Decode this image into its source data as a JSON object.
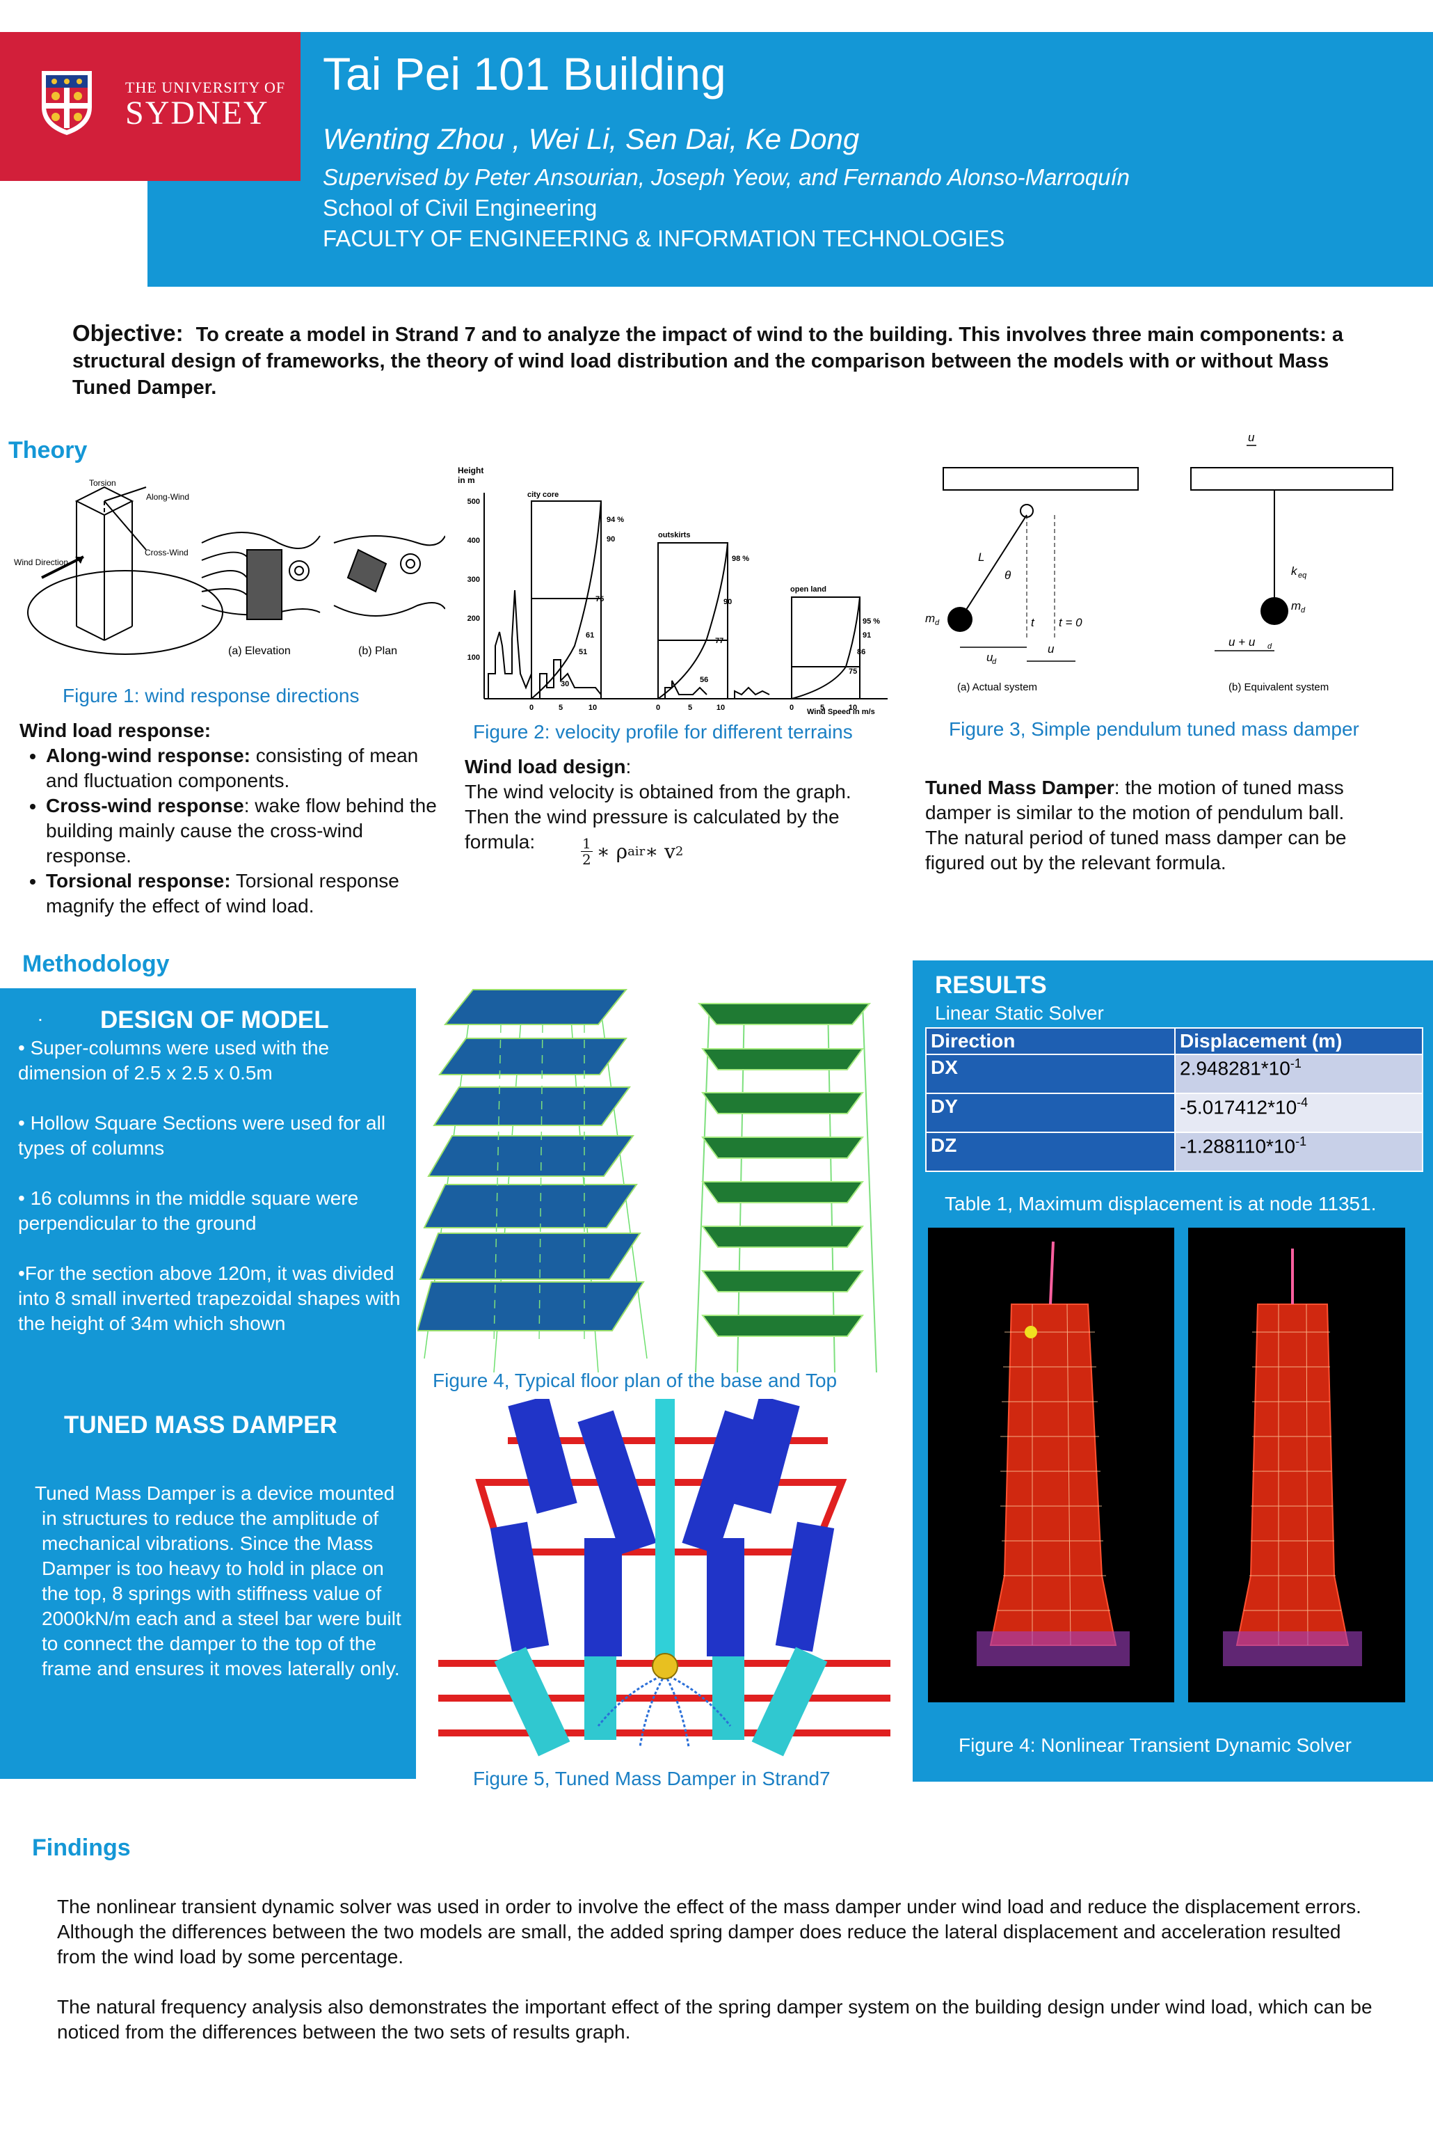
{
  "header": {
    "university_small": "THE UNIVERSITY OF",
    "university_big": "SYDNEY",
    "title": "Tai Pei 101 Building",
    "authors": "Wenting Zhou , Wei Li,  Sen Dai, Ke Dong",
    "supervisors": "Supervised by Peter Ansourian, Joseph Yeow, and Fernando Alonso-Marroquín",
    "school": "School of Civil Engineering",
    "faculty": "FACULTY OF ENGINEERING & INFORMATION TECHNOLOGIES"
  },
  "objective": {
    "label": "Objective:",
    "text": "To create a model in Strand 7 and to analyze the impact of wind to the building. This involves three main components: a structural design of frameworks, the theory of wind load distribution and the comparison between the models with or without Mass Tuned Damper."
  },
  "theory": {
    "heading": "Theory",
    "fig1": {
      "caption": "Figure 1: wind response directions",
      "labels": {
        "torsion": "Torsion",
        "along_wind": "Along-Wind",
        "cross_wind": "Cross-Wind",
        "wind_direction": "Wind Direction",
        "elevation": "(a) Elevation",
        "plan": "(b) Plan"
      }
    },
    "fig2": {
      "caption": "Figure 2: velocity profile for different terrains",
      "labels": {
        "height": "Height",
        "in_m": "in m",
        "city_core": "city core",
        "outskirts": "outskirts",
        "open_land": "open land",
        "wind_speed": "Wind Speed in m/s",
        "y_ticks": [
          "500",
          "400",
          "300",
          "200",
          "100"
        ],
        "x_ticks": [
          "0",
          "5",
          "10"
        ],
        "city_pcts": [
          "94 %",
          "90",
          "75",
          "61",
          "51",
          "30"
        ],
        "outskirts_pcts": [
          "98 %",
          "90",
          "77",
          "56"
        ],
        "open_pcts": [
          "95 %",
          "91",
          "86",
          "75"
        ]
      }
    },
    "fig3": {
      "caption": "Figure 3, Simple pendulum tuned mass damper",
      "labels": {
        "actual": "(a) Actual system",
        "equivalent": "(b) Equivalent system",
        "L": "L",
        "theta": "θ",
        "md": "m",
        "md_sub": "d",
        "keq": "k",
        "keq_sub": "eq",
        "t": "t",
        "t0": "t = 0",
        "ud": "u",
        "ud_sub": "d",
        "u": "u",
        "u_plus": "u + u",
        "u_top": "u"
      }
    },
    "wind_load_response": {
      "heading": "Wind load response:",
      "items": [
        {
          "bold": "Along-wind response:",
          "text": " consisting of mean and fluctuation components."
        },
        {
          "bold": "Cross-wind response",
          "text": ": wake flow behind the building mainly cause the cross-wind response."
        },
        {
          "bold": "Torsional response:",
          "text": " Torsional response magnify the effect of wind load."
        }
      ]
    },
    "wind_load_design": {
      "heading": "Wind load design",
      "colon": ":",
      "text": "The wind velocity is obtained from the graph. Then the wind pressure is calculated by the formula:",
      "formula_num": "1",
      "formula_den": "2",
      "formula_rest": "∗ ρ",
      "formula_sub": "air",
      "formula_end": " ∗ v",
      "formula_sup": "2"
    },
    "tmd_text": {
      "bold": "Tuned Mass Damper",
      "text": ": the motion of tuned mass damper is similar to the motion of pendulum ball. The natural period of tuned mass damper can be figured out by the relevant formula."
    }
  },
  "methodology": {
    "heading": "Methodology",
    "dot": ".",
    "design_heading": "DESIGN OF MODEL",
    "design_items": [
      "• Super-columns were used with the dimension of 2.5 x 2.5 x 0.5m",
      "• Hollow Square Sections were used for all types of columns",
      "• 16 columns in the middle square were perpendicular to the ground",
      "•For the section above  120m, it was divided into 8 small inverted trapezoidal shapes with the height of 34m which shown"
    ],
    "tmd_heading": "TUNED MASS DAMPER",
    "tmd_text": "Tuned Mass Damper is a device mounted in structures to reduce the amplitude of mechanical vibrations. Since the Mass Damper is too heavy to hold in place on the top, 8 springs with stiffness value of 2000kN/m each and a steel bar were built to connect the damper to the top of the frame and ensures it moves laterally only.",
    "fig4_caption": "Figure 4, Typical floor plan of the base and Top",
    "fig5_caption": "Figure 5, Tuned Mass Damper in Strand7"
  },
  "results": {
    "heading": "RESULTS",
    "subheading": "Linear Static Solver",
    "table": {
      "headers": [
        "Direction",
        "Displacement (m)"
      ],
      "rows": [
        {
          "dir": "DX",
          "base": "2.948281*10",
          "exp": "-1"
        },
        {
          "dir": "DY",
          "base": "-5.017412*10",
          "exp": "-4"
        },
        {
          "dir": "DZ",
          "base": "-1.288110*10",
          "exp": "-1"
        }
      ]
    },
    "table_caption": "Table 1, Maximum displacement is at node 11351.",
    "fig4b_caption": "Figure 4: Nonlinear Transient Dynamic Solver"
  },
  "findings": {
    "heading": "Findings",
    "para1": "The nonlinear transient dynamic solver was used in order to involve the effect of the mass damper under wind load and reduce the displacement errors. Although the differences between the two models are small, the added spring damper does reduce the lateral displacement and acceleration resulted from the wind load by some percentage.",
    "para2": "The natural frequency analysis also demonstrates the important effect of the spring damper system on the building design under wind load, which can be noticed from the differences between the two sets of results graph."
  },
  "colors": {
    "header_blue": "#1497d6",
    "logo_red": "#d21f3a",
    "caption_blue": "#1a7fc4",
    "table_blue": "#1e5fb2"
  }
}
